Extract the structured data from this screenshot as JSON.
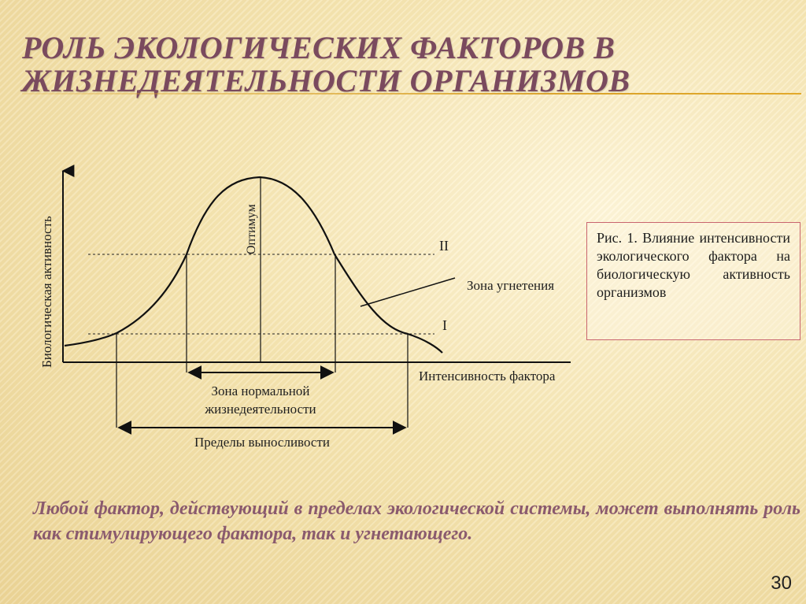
{
  "slide": {
    "title": "РОЛЬ ЭКОЛОГИЧЕСКИХ ФАКТОРОВ В ЖИЗНЕДЕЯТЕЛЬНОСТИ ОРГАНИЗМОВ",
    "caption": "Любой фактор, действующий в пределах экологической системы, может выполнять роль как стимулирующего фактора, так и угнетающего.",
    "page_number": "30"
  },
  "diagram": {
    "y_axis_label": "Биологическая активность",
    "x_axis_label": "Интенсивность фактора",
    "optimum_label": "Оптимум",
    "level_upper_label": "II",
    "level_lower_label": "I",
    "oppression_zone_label": "Зона угнетения",
    "normal_zone_label_line1": "Зона нормальной",
    "normal_zone_label_line2": "жизнедеятельности",
    "endurance_label": "Пределы выносливости"
  },
  "figure_caption": {
    "text": "Рис. 1. Влияние интенсивности экологического фактора на биологическую активность организмов"
  }
}
